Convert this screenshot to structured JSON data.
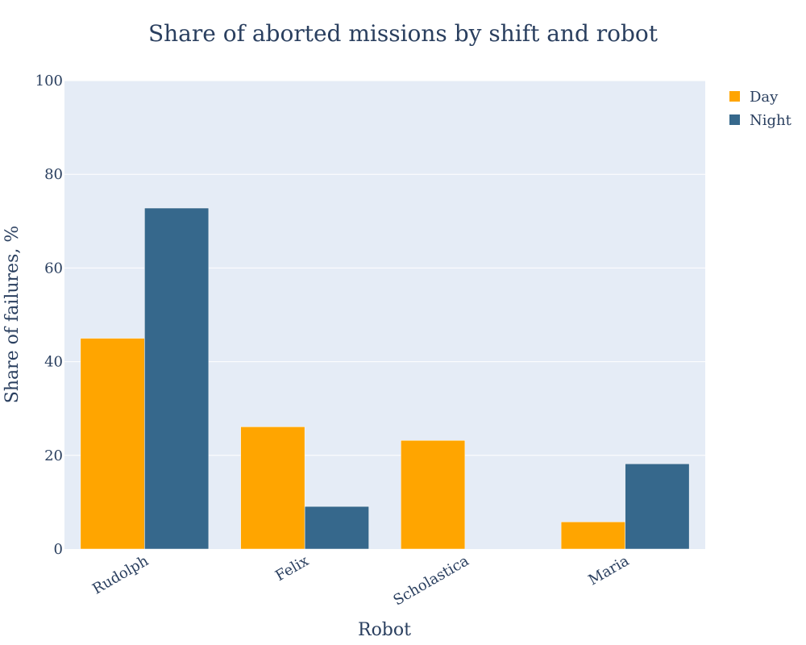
{
  "chart_data": {
    "type": "bar",
    "title": "Share of aborted missions by shift and robot",
    "xlabel": "Robot",
    "ylabel": "Share of failures, %",
    "categories": [
      "Rudolph",
      "Felix",
      "Scholastica",
      "Maria"
    ],
    "series": [
      {
        "name": "Day",
        "color": "#ffa500",
        "values": [
          45.0,
          26.1,
          23.2,
          5.8
        ]
      },
      {
        "name": "Night",
        "color": "#36688c",
        "values": [
          72.8,
          9.1,
          0,
          18.2
        ]
      }
    ],
    "ylim": [
      0,
      100
    ],
    "yticks": [
      0,
      20,
      40,
      60,
      80,
      100
    ],
    "grid": true,
    "legend_position": "top-right",
    "plot_background": "#e5ecf6"
  }
}
